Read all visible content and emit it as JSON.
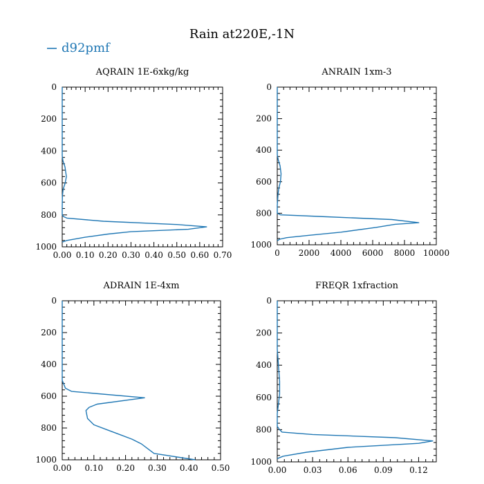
{
  "figure": {
    "title": "Rain at220E,-1N",
    "legend": {
      "label": "d92pmf",
      "color": "#1f77b4"
    }
  },
  "chart_data": [
    {
      "type": "line",
      "title": "AQRAIN  1E-6xkg/kg",
      "xlim": [
        0,
        0.7
      ],
      "ylim": [
        1000,
        0
      ],
      "xticks": [
        "0.00",
        "0.10",
        "0.20",
        "0.30",
        "0.40",
        "0.50",
        "0.60",
        "0.70"
      ],
      "yticks": [
        "0",
        "200",
        "400",
        "600",
        "800",
        "1000"
      ],
      "series": [
        {
          "name": "d92pmf",
          "x": [
            0,
            0,
            0.003,
            0.012,
            0.018,
            0.013,
            0.004,
            0.001,
            0,
            0,
            0.005,
            0.02,
            0.18,
            0.5,
            0.63,
            0.55,
            0.3,
            0.2,
            0.1,
            0.02,
            0
          ],
          "y": [
            0,
            430,
            460,
            500,
            560,
            600,
            640,
            680,
            750,
            800,
            810,
            820,
            840,
            860,
            875,
            890,
            905,
            920,
            940,
            960,
            970
          ]
        }
      ]
    },
    {
      "type": "line",
      "title": "ANRAIN  1xm-3",
      "xlim": [
        0,
        10000
      ],
      "ylim": [
        1000,
        0
      ],
      "xticks": [
        "0",
        "2000",
        "4000",
        "6000",
        "8000",
        "10000"
      ],
      "yticks": [
        "0",
        "200",
        "400",
        "600",
        "800",
        "1000"
      ],
      "series": [
        {
          "name": "d92pmf",
          "x": [
            0,
            0,
            60,
            180,
            240,
            200,
            100,
            50,
            0,
            0,
            200,
            2600,
            7200,
            8900,
            7400,
            6200,
            4000,
            2000,
            600,
            150,
            0
          ],
          "y": [
            0,
            430,
            460,
            500,
            550,
            600,
            640,
            680,
            750,
            800,
            810,
            820,
            840,
            860,
            870,
            890,
            920,
            940,
            955,
            965,
            975
          ]
        }
      ]
    },
    {
      "type": "line",
      "title": "ADRAIN  1E-4xm",
      "xlim": [
        0,
        0.5
      ],
      "ylim": [
        1000,
        0
      ],
      "xticks": [
        "0.00",
        "0.10",
        "0.20",
        "0.30",
        "0.40",
        "0.50"
      ],
      "yticks": [
        "0",
        "200",
        "400",
        "600",
        "800",
        "1000"
      ],
      "series": [
        {
          "name": "d92pmf",
          "x": [
            0,
            0,
            0.01,
            0.03,
            0.26,
            0.11,
            0.085,
            0.075,
            0.08,
            0.1,
            0.14,
            0.18,
            0.22,
            0.25,
            0.27,
            0.29,
            0.42
          ],
          "y": [
            0,
            500,
            550,
            570,
            610,
            650,
            670,
            690,
            740,
            780,
            810,
            840,
            870,
            900,
            930,
            960,
            1000
          ]
        }
      ]
    },
    {
      "type": "line",
      "title": "FREQR  1xfraction",
      "xlim": [
        0,
        0.135
      ],
      "ylim": [
        1000,
        0
      ],
      "xticks": [
        "0.00",
        "0.03",
        "0.06",
        "0.09",
        "0.12"
      ],
      "yticks": [
        "0",
        "200",
        "400",
        "600",
        "800",
        "1000"
      ],
      "series": [
        {
          "name": "d92pmf",
          "x": [
            0,
            0,
            0.001,
            0.002,
            0.002,
            0.001,
            0,
            0,
            0.002,
            0.004,
            0.03,
            0.1,
            0.132,
            0.12,
            0.06,
            0.025,
            0.005,
            0
          ],
          "y": [
            0,
            300,
            400,
            500,
            580,
            640,
            700,
            780,
            800,
            815,
            830,
            850,
            870,
            885,
            910,
            940,
            965,
            980
          ]
        }
      ]
    }
  ]
}
